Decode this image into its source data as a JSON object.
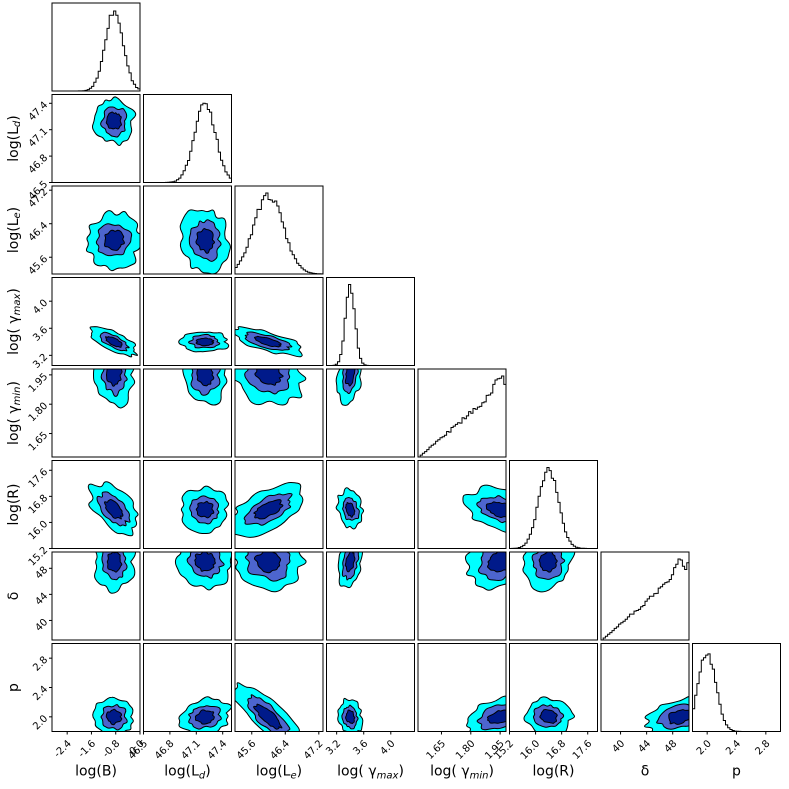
{
  "chart_data": {
    "type": "corner",
    "title": "",
    "params": [
      {
        "name": "logB",
        "label": "log(B)",
        "range": [
          -2.9,
          0.0
        ],
        "ticks": [
          -2.4,
          -1.6,
          -0.8,
          0.0
        ],
        "tick_labels": [
          "-2.4",
          "-1.6",
          "-0.8",
          "0.0"
        ],
        "peak": -0.85,
        "spread": 0.3
      },
      {
        "name": "logLd",
        "label": "log(L",
        "sub": "d",
        "ylabel_suffix": ")",
        "range": [
          46.5,
          47.5
        ],
        "ticks": [
          46.5,
          46.8,
          47.1,
          47.4
        ],
        "tick_labels": [
          "46.5",
          "46.8",
          "47.1",
          "47.4"
        ],
        "peak": 47.2,
        "spread": 0.12
      },
      {
        "name": "logLe",
        "label": "log(L",
        "sub": "e",
        "range": [
          45.2,
          47.3
        ],
        "ticks": [
          45.6,
          46.4,
          47.2
        ],
        "tick_labels": [
          "45.6",
          "46.4",
          "47.2"
        ],
        "peak": 46.0,
        "spread": 0.35
      },
      {
        "name": "logGmax",
        "label": "log( γ",
        "sub": "max",
        "range": [
          3.05,
          4.35
        ],
        "ticks": [
          3.2,
          3.6,
          4.0
        ],
        "tick_labels": [
          "3.2",
          "3.6",
          "4.0"
        ],
        "peak": 3.4,
        "spread": 0.07
      },
      {
        "name": "logGmin",
        "label": "log( γ",
        "sub": "min",
        "range": [
          1.53,
          1.98
        ],
        "ticks": [
          1.65,
          1.8,
          1.95
        ],
        "tick_labels": [
          "1.65",
          "1.80",
          "1.95"
        ],
        "peak": 1.95,
        "spread": 0.07
      },
      {
        "name": "logR",
        "label": "log(R)",
        "range": [
          15.2,
          17.9
        ],
        "ticks": [
          15.2,
          16.0,
          16.8,
          17.6
        ],
        "tick_labels": [
          "15.2",
          "16.0",
          "16.8",
          "17.6"
        ],
        "peak": 16.4,
        "spread": 0.3
      },
      {
        "name": "delta",
        "label": "δ",
        "range": [
          37.0,
          50.5
        ],
        "ticks": [
          40,
          44,
          48
        ],
        "tick_labels": [
          "40",
          "44",
          "48"
        ],
        "peak": 49.0,
        "spread": 2.0
      },
      {
        "name": "p",
        "label": "p",
        "range": [
          1.8,
          3.0
        ],
        "ticks": [
          2.0,
          2.4,
          2.8
        ],
        "tick_labels": [
          "2.0",
          "2.4",
          "2.8"
        ],
        "peak": 2.0,
        "spread": 0.12
      }
    ],
    "contour_levels": [
      "outer",
      "middle",
      "inner"
    ],
    "colors": {
      "outer": "#00ffff",
      "middle": "#4d65ce",
      "inner": "#001a8a",
      "line": "#000000"
    }
  }
}
